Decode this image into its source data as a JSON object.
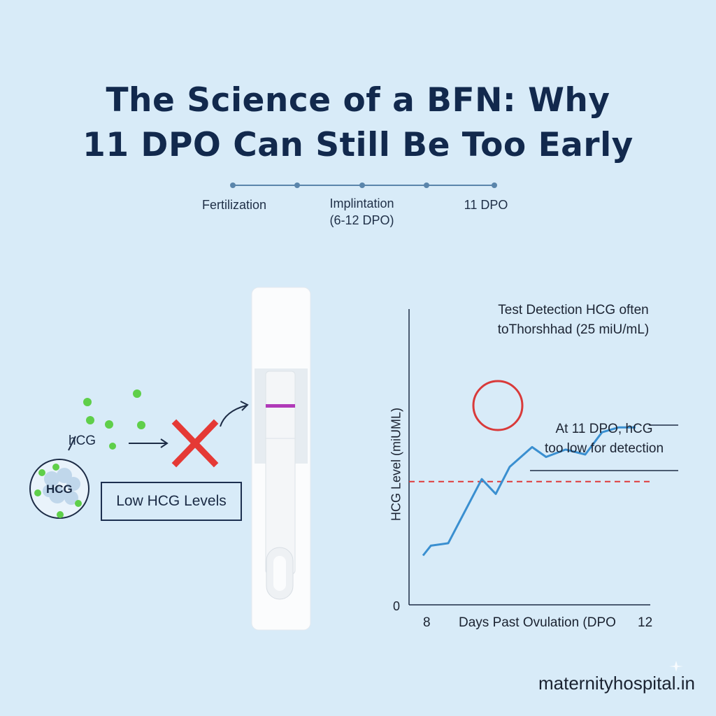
{
  "title": {
    "line1": "The Science of a BFN: Why",
    "line2": "11 DPO Can Still Be Too Early"
  },
  "timeline": {
    "labels": [
      "Fertilization",
      "Implintation",
      "(6-12 DPO)",
      "11 DPO"
    ]
  },
  "illustration": {
    "hcg_label": "hCG",
    "cluster_label": "HCG",
    "low_levels_label": "Low HCG Levels",
    "colors": {
      "particle": "#5fcf4a",
      "cross": "#e53935",
      "test_line": "#b03ab8"
    }
  },
  "chart_data": {
    "type": "line",
    "title": "Test Detection HCG often toThorshhad (25 miU/mL)",
    "title_lines": [
      "Test Detection HCG often",
      "toThorshhad (25 miU/mL)"
    ],
    "ylabel": "HCG Level (miUML)",
    "xlabel": "Days Past Ovulation (DPO",
    "x_tick_start": "8",
    "x_tick_end": "12",
    "y_tick_zero": "0",
    "threshold_label": "25 miU/mL",
    "threshold_value": 25,
    "ylim": [
      0,
      60
    ],
    "xlim": [
      8,
      12
    ],
    "series": [
      {
        "x": [
          8.0,
          8.14,
          8.45,
          9.05,
          9.3,
          9.55,
          9.95,
          10.2,
          10.55,
          10.9,
          11.2,
          11.5,
          11.8
        ],
        "y": [
          10,
          12,
          12.5,
          25.5,
          22.5,
          28,
          32,
          30,
          31.5,
          30.5,
          35,
          36,
          36
        ]
      }
    ],
    "annotation_lines": [
      "At 11 DPO, hCG",
      "too low for detection"
    ],
    "colors": {
      "line": "#3a8fd0",
      "threshold": "#e03a3a",
      "circle": "#d93a3a",
      "axis": "#1d2c46"
    }
  },
  "footer": {
    "site": "maternityhospital.in"
  }
}
